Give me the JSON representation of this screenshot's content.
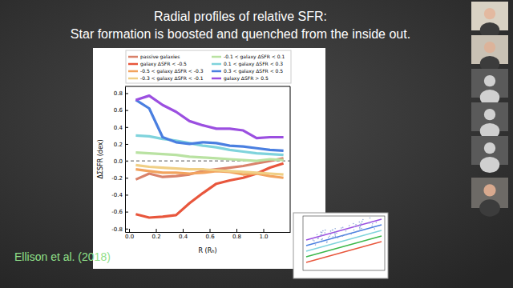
{
  "chart_data": {
    "type": "line",
    "title": "Radial profiles of relative SFR:",
    "subtitle": "Star formation is boosted and quenched from the inside out.",
    "x_label": "R (Rₕ)",
    "y_label": "ΔΣSFR (dex)",
    "x": [
      0.05,
      0.15,
      0.25,
      0.35,
      0.45,
      0.55,
      0.65,
      0.75,
      0.85,
      0.95,
      1.05,
      1.15
    ],
    "series": [
      {
        "name": "passive galaxies",
        "color": "#d9826a",
        "values": [
          -0.22,
          -0.15,
          -0.19,
          -0.18,
          -0.16,
          -0.12,
          -0.1,
          -0.08,
          -0.06,
          -0.03,
          0.0,
          0.03
        ]
      },
      {
        "name": "galaxy ΔSFR < -0.5",
        "color": "#e8563c",
        "values": [
          -0.63,
          -0.67,
          -0.66,
          -0.64,
          -0.5,
          -0.38,
          -0.27,
          -0.23,
          -0.2,
          -0.15,
          -0.08,
          -0.03
        ]
      },
      {
        "name": "-0.5 < galaxy ΔSFR < -0.3",
        "color": "#f2a35e",
        "values": [
          -0.1,
          -0.12,
          -0.14,
          -0.14,
          -0.15,
          -0.14,
          -0.12,
          -0.13,
          -0.16,
          -0.15,
          -0.18,
          -0.2
        ]
      },
      {
        "name": "-0.3 < galaxy ΔSFR < -0.1",
        "color": "#f0cf85",
        "values": [
          -0.05,
          -0.07,
          -0.08,
          -0.09,
          -0.1,
          -0.1,
          -0.11,
          -0.12,
          -0.13,
          -0.14,
          -0.15,
          -0.16
        ]
      },
      {
        "name": "-0.1 < galaxy ΔSFR < 0.1",
        "color": "#b9e2a2",
        "values": [
          0.1,
          0.09,
          0.08,
          0.07,
          0.05,
          0.04,
          0.03,
          0.02,
          0.01,
          0.0,
          0.02,
          0.01
        ]
      },
      {
        "name": "0.1 < galaxy ΔSFR < 0.3",
        "color": "#7fd3dc",
        "values": [
          0.3,
          0.29,
          0.26,
          0.24,
          0.21,
          0.18,
          0.16,
          0.13,
          0.11,
          0.09,
          0.08,
          0.07
        ]
      },
      {
        "name": "0.3 < galaxy ΔSFR < 0.5",
        "color": "#4a7fe0",
        "values": [
          0.72,
          0.62,
          0.28,
          0.22,
          0.2,
          0.22,
          0.21,
          0.18,
          0.17,
          0.15,
          0.13,
          0.12
        ]
      },
      {
        "name": "galaxy ΔSFR > 0.5",
        "color": "#9b4fe0",
        "values": [
          0.72,
          0.77,
          0.66,
          0.58,
          0.47,
          0.42,
          0.38,
          0.38,
          0.36,
          0.27,
          0.28,
          0.28
        ]
      }
    ],
    "hline": 0,
    "xlim": [
      -0.03,
      1.2
    ],
    "xticks": [
      {
        "value": 0,
        "label": "0.0"
      },
      0.2,
      0.4,
      0.6,
      0.8,
      {
        "value": 1,
        "label": "1.0"
      }
    ],
    "ylim": [
      -0.84,
      0.88
    ],
    "yticks": [
      -0.8,
      -0.6,
      -0.4,
      -0.2,
      {
        "value": 0,
        "label": "0.0"
      },
      0.2,
      0.4,
      0.6,
      0.8
    ],
    "legend": "top"
  },
  "slide": {
    "citation": "Ellison et al. (2018)"
  }
}
